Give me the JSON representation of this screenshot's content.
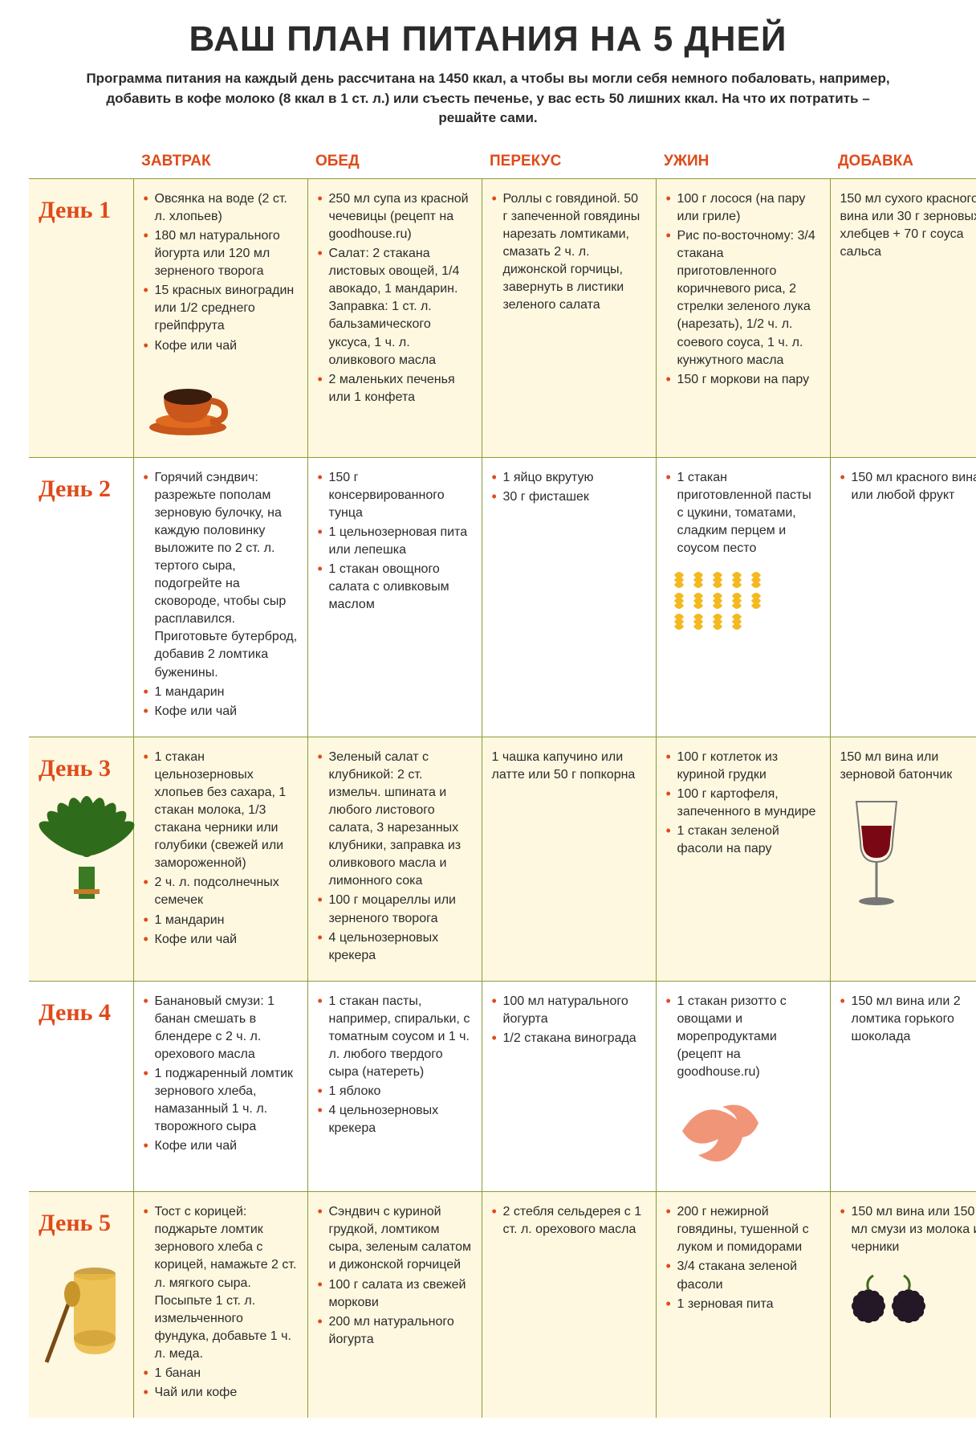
{
  "colors": {
    "accent": "#e04a1a",
    "rule": "#8a9a3a",
    "row_odd_bg": "#fff8e0",
    "row_even_bg": "#ffffff",
    "text": "#2b2b2b"
  },
  "title": "ВАШ ПЛАН ПИТАНИЯ НА 5 ДНЕЙ",
  "subtitle": "Программа питания на каждый день рассчитана на 1450 ккал, а чтобы вы могли себя немного побаловать, например, добавить в кофе молоко (8 ккал в 1 ст. л.) или съесть печенье, у вас есть 50 лишних ккал. На что их потратить – решайте сами.",
  "columns": [
    "ЗАВТРАК",
    "ОБЕД",
    "ПЕРЕКУС",
    "УЖИН",
    "ДОБАВКА"
  ],
  "days": [
    {
      "name": "День 1",
      "meals": {
        "breakfast": {
          "bullets": true,
          "items": [
            "Овсянка на воде (2 ст. л. хлопьев)",
            "180 мл натурального йогурта или 120 мл зерненого творога",
            "15 красных виноградин или 1/2 среднего грейпфрута",
            "Кофе или чай"
          ]
        },
        "lunch": {
          "bullets": true,
          "items": [
            "250 мл супа из красной чечевицы (рецепт на goodhouse.ru)",
            "Салат: 2 стакана листовых овощей, 1/4 авокадо, 1 мандарин. Заправка: 1 ст. л. бальзамического уксуса, 1 ч. л. оливкового масла",
            "2 маленьких печенья или 1 конфета"
          ]
        },
        "snack": {
          "bullets": true,
          "items": [
            "Роллы с говядиной. 50 г запеченной говядины нарезать ломтиками, смазать 2 ч. л. дижонской горчицы, завернуть в листики зеленого салата"
          ]
        },
        "dinner": {
          "bullets": true,
          "items": [
            "100 г лосося (на пару или гриле)",
            "Рис по-восточному: 3/4 стакана приготовленного коричневого риса, 2 стрелки зеленого лука (нарезать), 1/2 ч. л. соевого соуса, 1 ч. л. кунжутного масла",
            "150 г моркови на пару"
          ]
        },
        "extra": {
          "bullets": false,
          "items": [
            "150 мл сухого красного вина или 30 г зерновых хлебцев + 70 г соуса сальса"
          ]
        }
      }
    },
    {
      "name": "День 2",
      "meals": {
        "breakfast": {
          "bullets": true,
          "items": [
            "Горячий сэндвич: разрежьте пополам зерновую булочку, на каждую половинку выложите по 2 ст. л. тертого сыра, подогрейте на сковороде, чтобы сыр расплавился. Приготовьте бутерброд, добавив 2 ломтика буженины.",
            "1 мандарин",
            "Кофе или чай"
          ]
        },
        "lunch": {
          "bullets": true,
          "items": [
            "150 г консервированного тунца",
            "1 цельнозерновая пита или лепешка",
            "1 стакан овощного салата с оливковым маслом"
          ]
        },
        "snack": {
          "bullets": true,
          "items": [
            "1 яйцо вкрутую",
            "30 г фисташек"
          ]
        },
        "dinner": {
          "bullets": true,
          "items": [
            "1 стакан приготовленной пасты с цукини, томатами, сладким перцем и соусом песто"
          ]
        },
        "extra": {
          "bullets": true,
          "items": [
            "150 мл красного вина или любой фрукт"
          ]
        }
      }
    },
    {
      "name": "День 3",
      "meals": {
        "breakfast": {
          "bullets": true,
          "items": [
            "1 стакан цельнозерновых хлопьев без сахара, 1 стакан молока, 1/3 стакана черники или голубики (свежей или замороженной)",
            "2 ч. л. подсолнечных семечек",
            "1 мандарин",
            "Кофе или чай"
          ]
        },
        "lunch": {
          "bullets": true,
          "items": [
            "Зеленый салат с клубникой: 2 ст. измельч. шпината и любого листового салата, 3 нарезанных клубники, заправка из оливкового масла и лимонного сока",
            "100 г моцареллы или зерненого творога",
            "4 цельнозерновых крекера"
          ]
        },
        "snack": {
          "bullets": false,
          "items": [
            "1 чашка капучино или латте или 50 г попкорна"
          ]
        },
        "dinner": {
          "bullets": true,
          "items": [
            "100 г котлеток из куриной грудки",
            "100 г картофеля, запеченного в мундире",
            "1 стакан зеленой фасоли на пару"
          ]
        },
        "extra": {
          "bullets": false,
          "items": [
            "150 мл вина или зерновой батончик"
          ]
        }
      }
    },
    {
      "name": "День 4",
      "meals": {
        "breakfast": {
          "bullets": true,
          "items": [
            "Банановый смузи: 1 банан смешать в блендере с 2 ч. л. орехового масла",
            "1 поджаренный ломтик зернового хлеба, намазанный 1 ч. л. творожного сыра",
            "Кофе или чай"
          ]
        },
        "lunch": {
          "bullets": true,
          "items": [
            "1 стакан пасты, например, спиральки, с томатным соусом и 1 ч. л. любого твердого сыра (натереть)",
            "1 яблоко",
            "4 цельнозерновых крекера"
          ]
        },
        "snack": {
          "bullets": true,
          "items": [
            "100 мл натурального йогурта",
            "1/2 стакана винограда"
          ]
        },
        "dinner": {
          "bullets": true,
          "items": [
            "1 стакан ризотто с овощами и морепродуктами (рецепт на goodhouse.ru)"
          ]
        },
        "extra": {
          "bullets": true,
          "items": [
            "150 мл вина или 2 ломтика горького шоколада"
          ]
        }
      }
    },
    {
      "name": "День 5",
      "meals": {
        "breakfast": {
          "bullets": true,
          "items": [
            "Тост с корицей: поджарьте ломтик зернового хлеба с корицей, намажьте 2 ст. л. мягкого сыра. Посыпьте 1 ст. л. измельченного фундука, добавьте 1 ч. л. меда.",
            "1 банан",
            "Чай или кофе"
          ]
        },
        "lunch": {
          "bullets": true,
          "items": [
            "Сэндвич с куриной грудкой, ломтиком сыра, зеленым салатом и дижонской горчицей",
            "100 г салата из свежей моркови",
            "200 мл натурального йогурта"
          ]
        },
        "snack": {
          "bullets": true,
          "items": [
            "2 стебля сельдерея с 1 ст. л. орехового масла"
          ]
        },
        "dinner": {
          "bullets": true,
          "items": [
            "200 г нежирной говядины, тушенной с луком и помидорами",
            "3/4 стакана зеленой фасоли",
            "1 зерновая пита"
          ]
        },
        "extra": {
          "bullets": true,
          "items": [
            "150 мл вина или 150 мл смузи из молока и черники"
          ]
        }
      }
    }
  ],
  "images": {
    "day1_breakfast": "coffee-cup-icon",
    "day2_dinner": "pasta-icon",
    "day3_left": "spinach-icon",
    "day3_extra": "wine-glass-icon",
    "day4_dinner": "shrimp-icon",
    "day5_left": "honey-jar-icon",
    "day5_extra": "blackberries-icon"
  }
}
